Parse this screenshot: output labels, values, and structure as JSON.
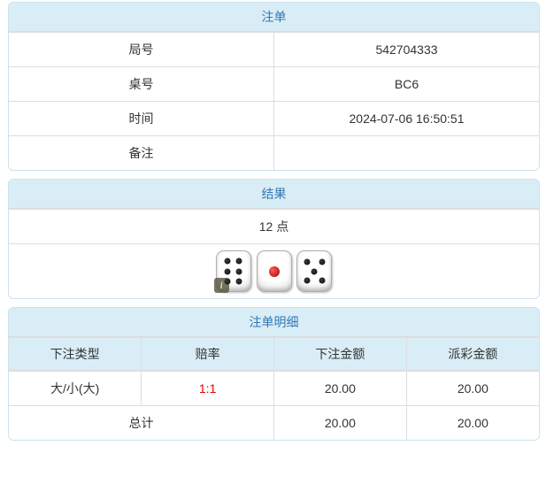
{
  "colors": {
    "header_bg": "#d9edf7",
    "title_text": "#3277b3",
    "body_text": "#333333",
    "cell_border": "#dddddd",
    "panel_border": "#cde2ec",
    "odds_red": "#e00000"
  },
  "panels": {
    "bet_order": {
      "title": "注单",
      "rows": [
        {
          "label": "局号",
          "value": "542704333"
        },
        {
          "label": "桌号",
          "value": "BC6"
        },
        {
          "label": "时间",
          "value": "2024-07-06 16:50:51"
        },
        {
          "label": "备注",
          "value": ""
        }
      ]
    },
    "result": {
      "title": "结果",
      "points": "12 点",
      "dice": [
        6,
        1,
        5
      ],
      "info_badge": "i"
    },
    "bet_details": {
      "title": "注单明细",
      "columns": [
        "下注类型",
        "赔率",
        "下注金额",
        "派彩金额"
      ],
      "rows": [
        {
          "bet_type": "大/小(大)",
          "odds": "1:1",
          "bet_amount": "20.00",
          "payout": "20.00"
        }
      ],
      "total": {
        "label": "总计",
        "bet_amount": "20.00",
        "payout": "20.00"
      }
    }
  }
}
